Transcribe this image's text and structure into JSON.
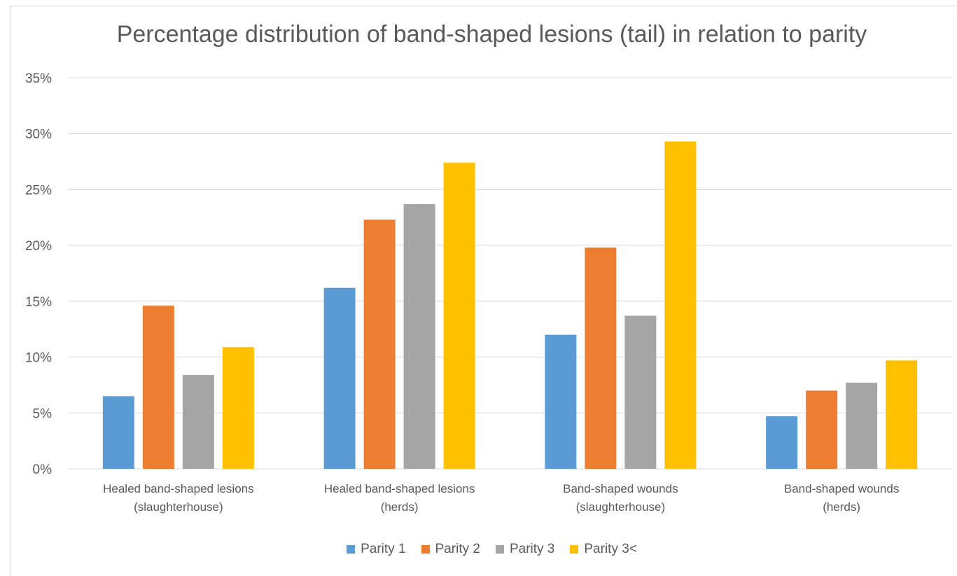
{
  "chart_data": {
    "type": "bar",
    "title": "Percentage distribution of band-shaped lesions (tail) in relation to parity",
    "xlabel": "",
    "ylabel": "",
    "ylim": [
      0,
      35
    ],
    "yticks": [
      "0%",
      "5%",
      "10%",
      "15%",
      "20%",
      "25%",
      "30%",
      "35%"
    ],
    "grid": true,
    "legend_position": "bottom",
    "categories": [
      [
        "Healed band-shaped lesions",
        "(slaughterhouse)"
      ],
      [
        "Healed band-shaped lesions",
        "(herds)"
      ],
      [
        "Band-shaped wounds",
        "(slaughterhouse)"
      ],
      [
        "Band-shaped wounds",
        "(herds)"
      ]
    ],
    "series": [
      {
        "name": "Parity 1",
        "color": "#5B9BD5",
        "values": [
          6.5,
          16.2,
          12.0,
          4.7
        ]
      },
      {
        "name": "Parity 2",
        "color": "#ED7D31",
        "values": [
          14.6,
          22.3,
          19.8,
          7.0
        ]
      },
      {
        "name": "Parity 3",
        "color": "#A5A5A5",
        "values": [
          8.4,
          23.7,
          13.7,
          7.7
        ]
      },
      {
        "name": "Parity 3<",
        "color": "#FFC000",
        "values": [
          10.9,
          27.4,
          29.3,
          9.7
        ]
      }
    ]
  }
}
